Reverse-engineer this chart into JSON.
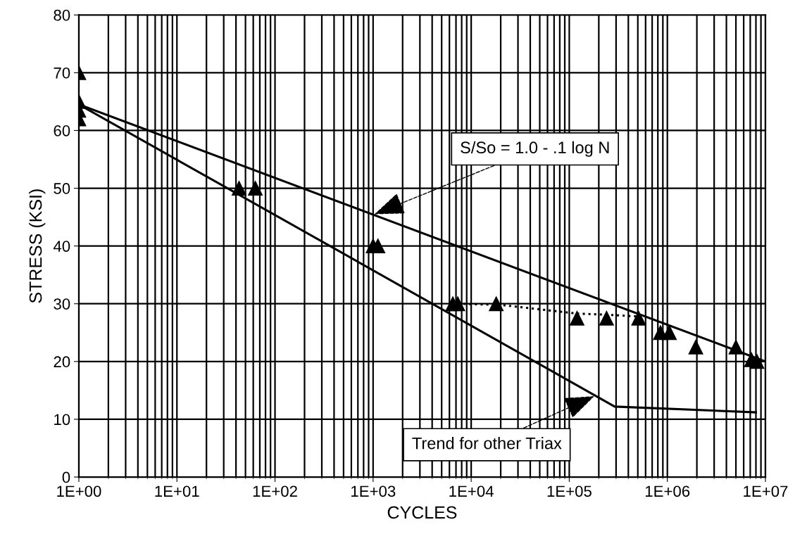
{
  "chart_data": {
    "type": "scatter",
    "xlabel": "CYCLES",
    "ylabel": "STRESS (KSI)",
    "log": "x",
    "grid": true,
    "legend": false,
    "xlim": [
      1,
      10000000
    ],
    "ylim": [
      0,
      80
    ],
    "xticks": [
      {
        "value": 1,
        "label": "1E+00"
      },
      {
        "value": 10,
        "label": "1E+01"
      },
      {
        "value": 100,
        "label": "1E+02"
      },
      {
        "value": 1000,
        "label": "1E+03"
      },
      {
        "value": 10000,
        "label": "1E+04"
      },
      {
        "value": 100000,
        "label": "1E+05"
      },
      {
        "value": 1000000,
        "label": "1E+06"
      },
      {
        "value": 10000000,
        "label": "1E+07"
      }
    ],
    "yticks": [
      0,
      10,
      20,
      30,
      40,
      50,
      60,
      70,
      80
    ],
    "series": [
      {
        "marker": "triangle",
        "color": "#000000",
        "x": [
          1,
          1,
          1,
          1,
          43,
          63,
          1000,
          1120,
          6500,
          7300,
          18000,
          120000,
          240000,
          510000,
          850000,
          1050000,
          1950000,
          5000000,
          7200000,
          8200000
        ],
        "values": [
          70,
          65,
          63.5,
          62,
          50,
          50,
          40,
          40,
          30,
          30,
          30,
          27.5,
          27.5,
          27.5,
          25,
          25,
          22.5,
          22.5,
          20.3,
          20
        ]
      },
      {
        "type": "line",
        "marker": "none",
        "line_style": "solid",
        "color": "#000000",
        "x": [
          1,
          10000000
        ],
        "values": [
          64.5,
          20
        ]
      },
      {
        "type": "line",
        "marker": "none",
        "line_style": "solid",
        "color": "#000000",
        "x": [
          1,
          290000,
          8000000
        ],
        "values": [
          64.5,
          12.2,
          11.2
        ]
      },
      {
        "type": "line",
        "marker": "none",
        "line_style": "dotted",
        "color": "#000000",
        "x": [
          7300,
          20000,
          120000,
          240000,
          510000
        ],
        "values": [
          30,
          29.8,
          28.3,
          28.1,
          27.8
        ]
      }
    ],
    "annotations": [
      {
        "text": "S/So = 1.0 - .1 log N",
        "x": 1030,
        "y": 45.5
      },
      {
        "text": "Trend for other Triax",
        "x": 180000,
        "y": 14
      }
    ]
  }
}
